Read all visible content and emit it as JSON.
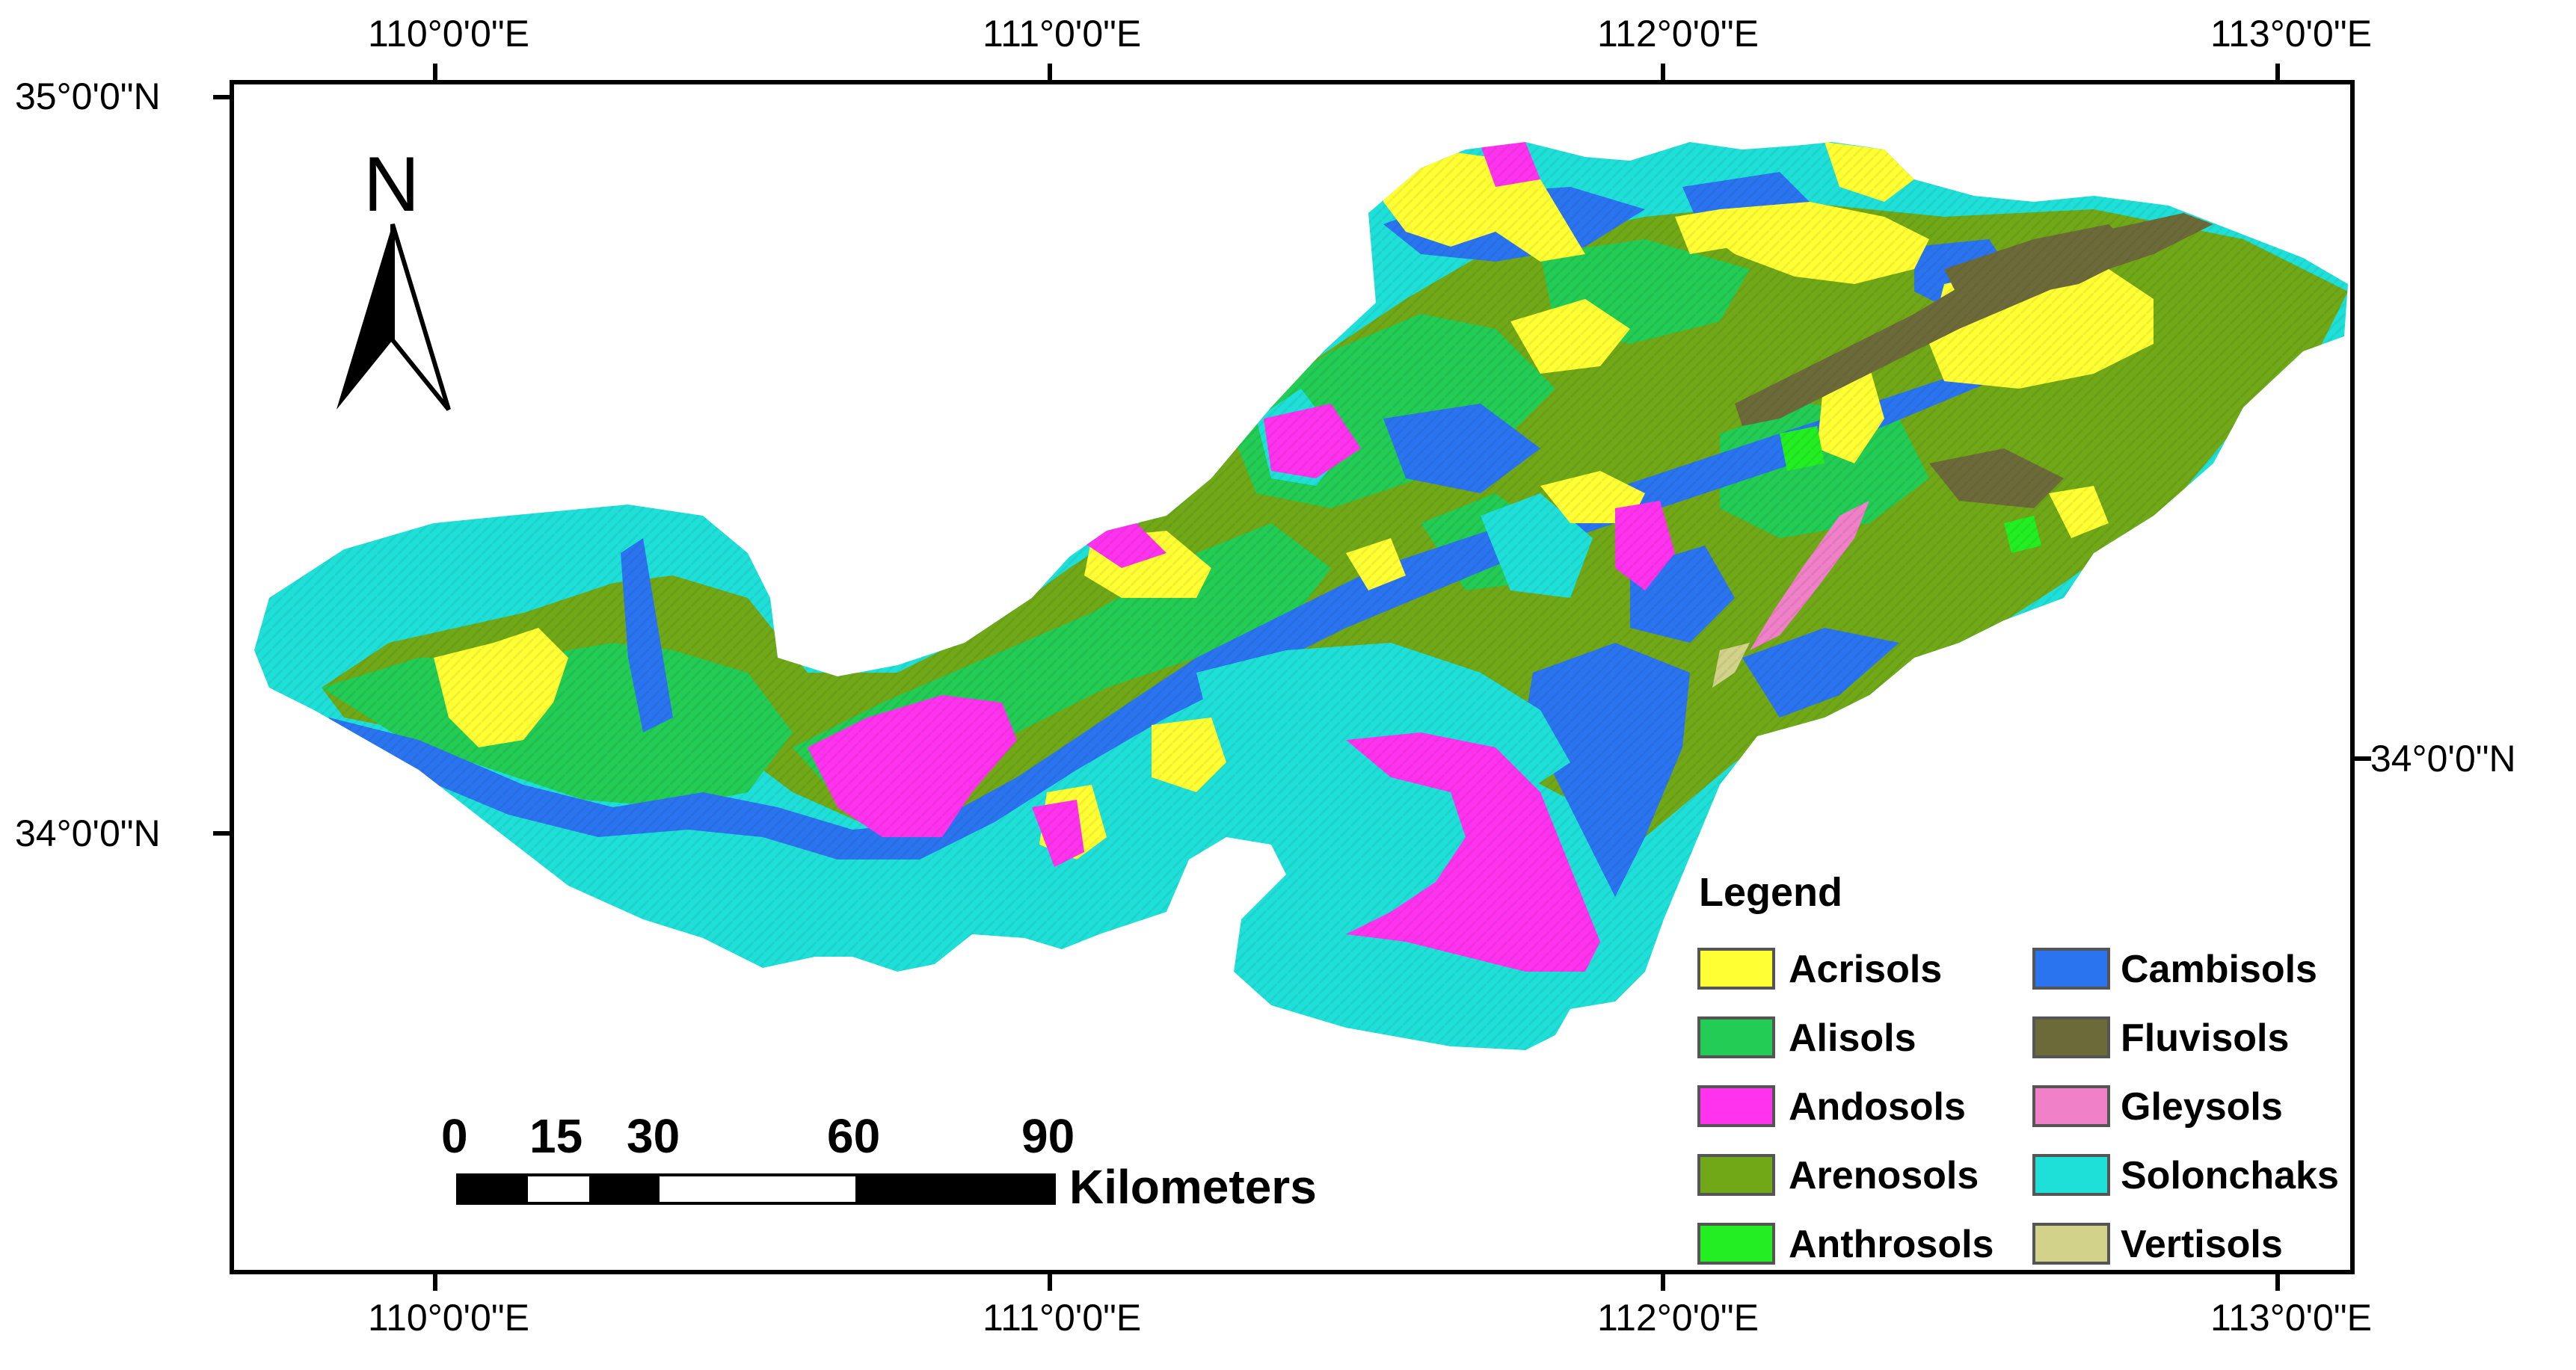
{
  "map": {
    "grid_labels": {
      "top": [
        "110°0'0\"E",
        "111°0'0\"E",
        "112°0'0\"E",
        "113°0'0\"E"
      ],
      "bottom": [
        "110°0'0\"E",
        "111°0'0\"E",
        "112°0'0\"E",
        "113°0'0\"E"
      ],
      "left": [
        "35°0'0\"N",
        "34°0'0\"N"
      ],
      "right": [
        "34°0'0\"N"
      ]
    },
    "north_arrow": {
      "letter": "N",
      "icon": "north-arrow-icon"
    },
    "scale_bar": {
      "ticks": [
        "0",
        "15",
        "30",
        "60",
        "90"
      ],
      "unit": "Kilometers"
    },
    "legend": {
      "title": "Legend",
      "items": [
        {
          "label": "Acrisols",
          "color": "#ffff33"
        },
        {
          "label": "Alisols",
          "color": "#22cc55"
        },
        {
          "label": "Andosols",
          "color": "#ff33ee"
        },
        {
          "label": "Arenosols",
          "color": "#70a817"
        },
        {
          "label": "Anthrosols",
          "color": "#22ee22"
        },
        {
          "label": "Cambisols",
          "color": "#2b74f0"
        },
        {
          "label": "Fluvisols",
          "color": "#6d6a3a"
        },
        {
          "label": "Gleysols",
          "color": "#f080c8"
        },
        {
          "label": "Solonchaks",
          "color": "#1fe0d8"
        },
        {
          "label": "Vertisols",
          "color": "#d2d28a"
        }
      ]
    }
  }
}
